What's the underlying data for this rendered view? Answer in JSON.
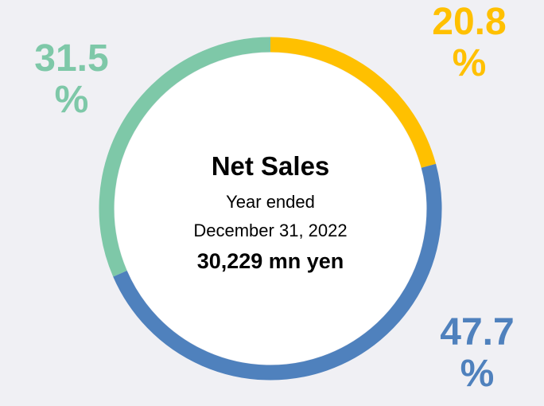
{
  "chart_data": {
    "type": "donut",
    "categories": [
      null,
      null,
      null
    ],
    "values": [
      20.8,
      47.7,
      31.5
    ],
    "value_labels": [
      "20.8 %",
      "47.7 %",
      "31.5 %"
    ],
    "colors": [
      "#ffc000",
      "#4f81bd",
      "#7ec8a8"
    ],
    "center_title": "Net Sales",
    "center_lines": [
      "Year ended",
      "December 31, 2022"
    ],
    "center_total": "30,229 mn yen"
  }
}
